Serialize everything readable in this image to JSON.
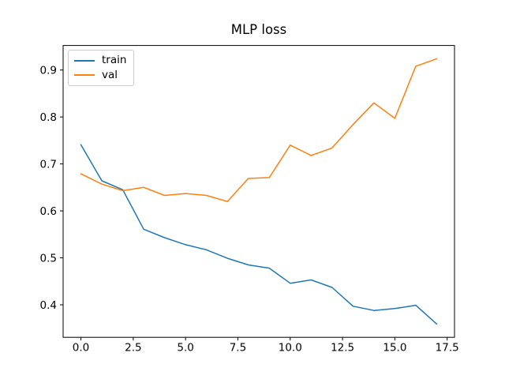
{
  "title": "MLP loss",
  "colors": {
    "background": "#ffffff",
    "train": "#1f77b4",
    "val": "#ff7f0e",
    "spine": "#000000",
    "tick_label": "#000000",
    "legend_border": "#cccccc"
  },
  "legend": {
    "position": "upper left",
    "items": [
      {
        "label": "train",
        "color": "#1f77b4"
      },
      {
        "label": "val",
        "color": "#ff7f0e"
      }
    ]
  },
  "chart_data": {
    "type": "line",
    "title": "MLP loss",
    "xlabel": "",
    "ylabel": "",
    "grid": false,
    "legend_position": "upper left",
    "x": [
      0,
      1,
      2,
      3,
      4,
      5,
      6,
      7,
      8,
      9,
      10,
      11,
      12,
      13,
      14,
      15,
      16,
      17
    ],
    "series": [
      {
        "name": "train",
        "color": "#1f77b4",
        "values": [
          0.741,
          0.664,
          0.645,
          0.561,
          0.543,
          0.528,
          0.517,
          0.499,
          0.485,
          0.478,
          0.446,
          0.453,
          0.437,
          0.397,
          0.388,
          0.392,
          0.399,
          0.359
        ]
      },
      {
        "name": "val",
        "color": "#ff7f0e",
        "values": [
          0.679,
          0.657,
          0.643,
          0.65,
          0.633,
          0.637,
          0.633,
          0.62,
          0.669,
          0.671,
          0.74,
          0.718,
          0.734,
          0.784,
          0.83,
          0.797,
          0.908,
          0.924
        ]
      }
    ],
    "xlim": [
      -0.85,
      17.85
    ],
    "ylim": [
      0.33075,
      0.95225
    ],
    "xticks": [
      0.0,
      2.5,
      5.0,
      7.5,
      10.0,
      12.5,
      15.0,
      17.5
    ],
    "xtick_labels": [
      "0.0",
      "2.5",
      "5.0",
      "7.5",
      "10.0",
      "12.5",
      "15.0",
      "17.5"
    ],
    "yticks": [
      0.4,
      0.5,
      0.6,
      0.7,
      0.8,
      0.9
    ],
    "ytick_labels": [
      "0.4",
      "0.5",
      "0.6",
      "0.7",
      "0.8",
      "0.9"
    ]
  }
}
